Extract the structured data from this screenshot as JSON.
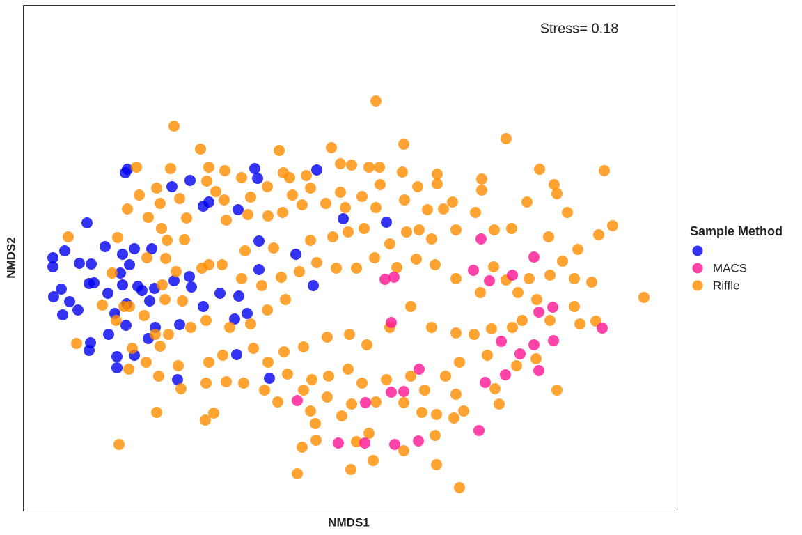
{
  "chart_data": {
    "type": "scatter",
    "annotation": "Stress= 0.18",
    "x_label": "NMDS1",
    "y_label": "NMDS2",
    "legend_title": "Sample Method",
    "legend_position": "right",
    "grid": false,
    "xlim": [
      -0.468,
      0.468
    ],
    "ylim": [
      -0.333,
      0.393
    ],
    "series": [
      {
        "name": null,
        "color": "#0000ee",
        "x": [
          -0.318,
          -0.376,
          -0.321,
          -0.254,
          -0.228,
          -0.135,
          -0.131,
          -0.046,
          -0.209,
          -0.201,
          -0.159,
          -0.008,
          0.054,
          -0.129,
          -0.076,
          -0.129,
          -0.051,
          -0.35,
          -0.325,
          -0.308,
          -0.283,
          -0.408,
          -0.425,
          -0.425,
          -0.387,
          -0.37,
          -0.366,
          -0.346,
          -0.413,
          -0.424,
          -0.401,
          -0.389,
          -0.411,
          -0.373,
          -0.325,
          -0.303,
          -0.279,
          -0.286,
          -0.319,
          -0.328,
          -0.315,
          -0.251,
          -0.229,
          -0.226,
          -0.209,
          -0.185,
          -0.158,
          -0.164,
          -0.146,
          -0.336,
          -0.345,
          -0.371,
          -0.373,
          -0.32,
          -0.288,
          -0.278,
          -0.333,
          -0.308,
          -0.333,
          -0.246,
          -0.161,
          -0.114,
          -0.297,
          -0.243
        ],
        "y": [
          0.157,
          0.08,
          0.152,
          0.132,
          0.141,
          0.158,
          0.144,
          0.156,
          0.104,
          0.11,
          0.099,
          0.086,
          0.081,
          0.054,
          0.035,
          0.013,
          -0.01,
          0.046,
          0.035,
          0.043,
          0.043,
          0.04,
          0.03,
          0.017,
          0.022,
          0.021,
          -0.006,
          -0.021,
          -0.015,
          -0.026,
          -0.033,
          -0.045,
          -0.052,
          -0.007,
          -0.009,
          -0.011,
          -0.014,
          -0.032,
          -0.036,
          0.008,
          0.02,
          -0.003,
          0.003,
          -0.012,
          -0.04,
          -0.021,
          -0.025,
          -0.058,
          -0.05,
          -0.05,
          -0.08,
          -0.092,
          -0.103,
          -0.067,
          -0.086,
          -0.07,
          -0.112,
          -0.11,
          -0.128,
          -0.145,
          -0.109,
          -0.143,
          -0.017,
          -0.066
        ]
      },
      {
        "name": "MACS",
        "color": "#ff1493",
        "x": [
          0.19,
          0.179,
          0.202,
          0.266,
          0.235,
          0.052,
          0.065,
          0.293,
          0.273,
          0.364,
          0.061,
          0.294,
          0.266,
          0.219,
          0.246,
          0.273,
          0.101,
          0.225,
          0.196,
          0.061,
          0.079,
          -0.074,
          0.024,
          -0.015,
          0.023,
          0.066,
          0.1,
          0.187
        ],
        "y": [
          0.057,
          0.012,
          -0.003,
          0.031,
          0.005,
          -0.001,
          0.002,
          -0.041,
          -0.048,
          -0.071,
          -0.063,
          -0.089,
          -0.095,
          -0.09,
          -0.108,
          -0.132,
          -0.13,
          -0.138,
          -0.149,
          -0.163,
          -0.162,
          -0.175,
          -0.178,
          -0.236,
          -0.236,
          -0.238,
          -0.233,
          -0.218
        ]
      },
      {
        "name": "Riffle",
        "color": "#ff8c00",
        "x": [
          -0.251,
          0.039,
          -0.213,
          -0.1,
          -0.025,
          0.079,
          0.226,
          0.367,
          0.274,
          -0.305,
          -0.256,
          -0.201,
          -0.178,
          -0.012,
          0.004,
          0.029,
          0.044,
          0.077,
          0.127,
          0.191,
          -0.094,
          -0.085,
          -0.061,
          -0.154,
          -0.204,
          -0.276,
          -0.301,
          -0.318,
          -0.288,
          -0.271,
          -0.243,
          -0.191,
          -0.179,
          -0.141,
          -0.117,
          -0.081,
          -0.055,
          -0.012,
          0.019,
          0.045,
          0.099,
          0.127,
          0.191,
          0.256,
          0.295,
          0.299,
          0.182,
          0.149,
          0.113,
          0.136,
          0.08,
          0.039,
          -0.005,
          -0.033,
          -0.067,
          -0.095,
          -0.116,
          -0.145,
          -0.176,
          -0.233,
          -0.269,
          -0.332,
          -0.261,
          -0.236,
          -0.29,
          -0.263,
          -0.248,
          -0.268,
          -0.34,
          -0.354,
          -0.334,
          -0.315,
          -0.294,
          -0.264,
          -0.239,
          -0.211,
          -0.201,
          -0.182,
          -0.149,
          -0.108,
          -0.055,
          -0.023,
          -0.001,
          0.022,
          0.059,
          0.083,
          0.101,
          0.119,
          0.154,
          0.209,
          0.234,
          0.287,
          0.314,
          0.329,
          0.379,
          0.359,
          0.307,
          0.289,
          0.324,
          0.349,
          0.424,
          0.324,
          0.332,
          0.355,
          0.27,
          0.243,
          0.259,
          0.226,
          0.208,
          0.189,
          0.154,
          0.124,
          0.097,
          0.069,
          0.037,
          0.011,
          -0.018,
          -0.046,
          -0.071,
          -0.097,
          -0.125,
          -0.154,
          -0.091,
          -0.117,
          -0.141,
          -0.171,
          -0.205,
          -0.227,
          -0.259,
          -0.271,
          -0.291,
          -0.316,
          -0.273,
          -0.245,
          -0.201,
          -0.181,
          -0.137,
          -0.116,
          -0.093,
          -0.065,
          -0.031,
          0.001,
          0.026,
          0.059,
          0.089,
          0.119,
          0.154,
          0.18,
          0.205,
          0.235,
          0.249,
          0.289,
          0.269,
          0.241,
          0.199,
          0.159,
          0.139,
          0.109,
          0.089,
          0.054,
          0.019,
          -0.001,
          -0.029,
          -0.053,
          -0.088,
          -0.121,
          -0.151,
          -0.176,
          -0.205,
          -0.241,
          -0.102,
          -0.065,
          -0.031,
          0.004,
          0.039,
          0.079,
          0.105,
          0.126,
          0.154,
          0.165,
          0.124,
          0.151,
          0.216,
          0.21,
          0.299,
          -0.055,
          -0.01,
          -0.048,
          -0.074,
          -0.067,
          -0.047,
          0.029,
          0.003,
          0.035,
          0.079,
          0.126,
          0.159,
          0.011,
          -0.206,
          -0.194,
          -0.276,
          -0.33,
          -0.391,
          -0.403,
          -0.323,
          -0.311,
          -0.278
        ],
        "y": [
          0.219,
          0.255,
          0.186,
          0.184,
          0.188,
          0.193,
          0.201,
          0.155,
          0.157,
          0.16,
          0.158,
          0.16,
          0.155,
          0.165,
          0.163,
          0.16,
          0.16,
          0.153,
          0.15,
          0.143,
          0.152,
          0.145,
          0.148,
          0.145,
          0.14,
          0.13,
          0.12,
          0.1,
          0.088,
          0.108,
          0.115,
          0.125,
          0.113,
          0.117,
          0.132,
          0.12,
          0.13,
          0.124,
          0.118,
          0.135,
          0.132,
          0.136,
          0.127,
          0.11,
          0.135,
          0.122,
          0.095,
          0.11,
          0.099,
          0.1,
          0.113,
          0.102,
          0.102,
          0.108,
          0.106,
          0.095,
          0.09,
          0.092,
          0.084,
          0.087,
          0.072,
          0.059,
          0.055,
          0.056,
          0.03,
          0.029,
          0.01,
          -0.009,
          0.008,
          -0.038,
          -0.06,
          -0.04,
          -0.053,
          -0.03,
          -0.032,
          0.015,
          0.02,
          0.02,
          0.04,
          0.044,
          0.055,
          0.06,
          0.067,
          0.072,
          0.05,
          0.067,
          0.07,
          0.057,
          0.07,
          0.07,
          0.072,
          0.06,
          0.095,
          0.042,
          0.076,
          0.063,
          0.025,
          0.005,
          0,
          -0.005,
          -0.027,
          -0.04,
          -0.065,
          -0.061,
          -0.03,
          -0.02,
          0,
          -0.002,
          0.017,
          -0.02,
          0,
          0.02,
          0.028,
          0.016,
          0.03,
          0.015,
          0.015,
          0.023,
          0.01,
          0.002,
          -0.01,
          0,
          -0.03,
          -0.045,
          -0.065,
          -0.07,
          -0.06,
          -0.07,
          -0.08,
          -0.097,
          -0.12,
          -0.13,
          -0.14,
          -0.125,
          -0.12,
          -0.11,
          -0.1,
          -0.12,
          -0.105,
          -0.098,
          -0.084,
          -0.08,
          -0.095,
          -0.07,
          -0.04,
          -0.07,
          -0.078,
          -0.08,
          -0.072,
          -0.07,
          -0.06,
          -0.06,
          -0.115,
          -0.125,
          -0.11,
          -0.12,
          -0.14,
          -0.16,
          -0.14,
          -0.145,
          -0.15,
          -0.13,
          -0.14,
          -0.145,
          -0.137,
          -0.16,
          -0.15,
          -0.148,
          -0.15,
          -0.158,
          -0.177,
          -0.16,
          -0.17,
          -0.18,
          -0.177,
          -0.178,
          -0.192,
          -0.195,
          -0.166,
          -0.19,
          -0.225,
          -0.2,
          -0.18,
          -0.158,
          -0.16,
          -0.19,
          -0.197,
          -0.208,
          -0.28,
          -0.242,
          -0.232,
          -0.222,
          -0.274,
          -0.261,
          -0.247,
          -0.267,
          -0.3,
          -0.234,
          -0.203,
          -0.193,
          -0.192,
          -0.238,
          -0.093,
          0.06,
          -0.04,
          -0.1,
          -0.08
        ]
      }
    ]
  }
}
